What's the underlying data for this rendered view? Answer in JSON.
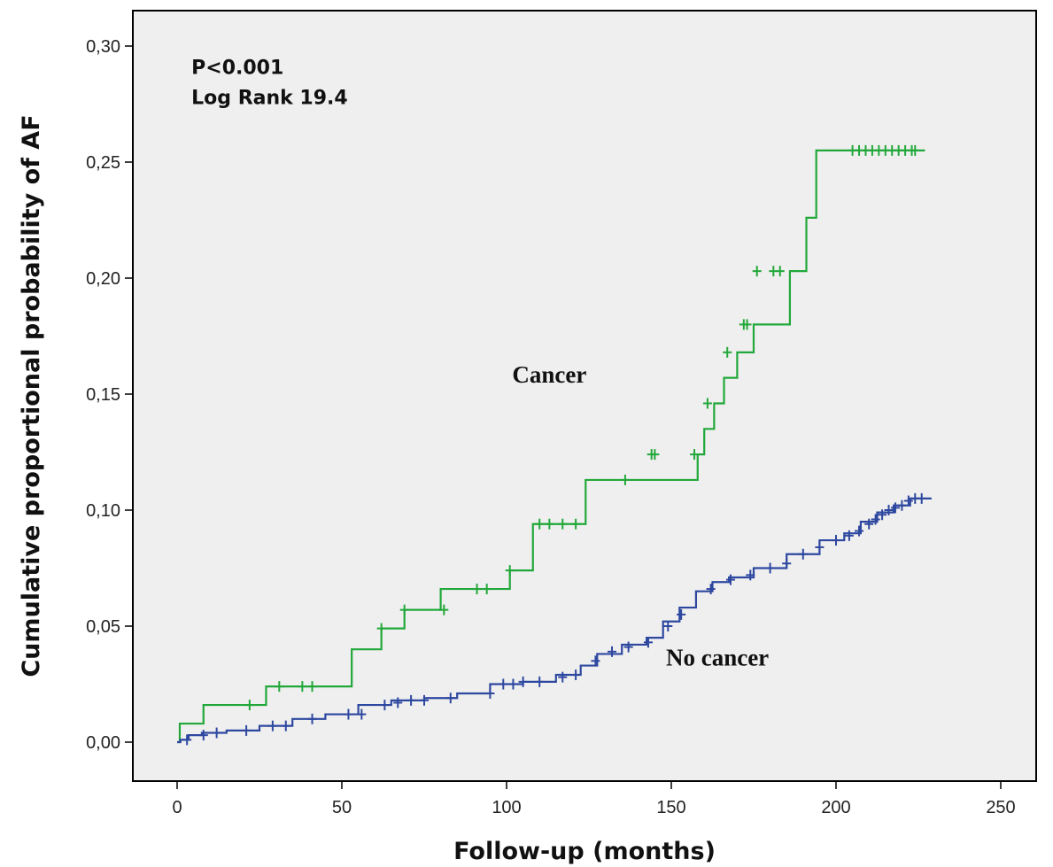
{
  "chart_data": {
    "type": "line",
    "step": true,
    "title": "",
    "xlabel": "Follow-up (months)",
    "ylabel": "Cumulative proportional probability of AF",
    "xlim": [
      0,
      250
    ],
    "ylim": [
      0,
      0.3
    ],
    "xticks": [
      0,
      50,
      100,
      150,
      200,
      250
    ],
    "xtick_labels": [
      "0",
      "50",
      "100",
      "150",
      "200",
      "250"
    ],
    "yticks": [
      0,
      0.05,
      0.1,
      0.15,
      0.2,
      0.25,
      0.3
    ],
    "ytick_labels": [
      "0,00",
      "0,05",
      "0,10",
      "0,15",
      "0,20",
      "0,25",
      "0,30"
    ],
    "grid": false,
    "background_color": "#efefef",
    "annotations": [
      {
        "text": "P<0.001",
        "x": 3,
        "y": 0.288
      },
      {
        "text": "Log Rank 19.4",
        "x": 3,
        "y": 0.275
      }
    ],
    "series": [
      {
        "name": "Cancer",
        "label_x": 113,
        "label_y": 0.155,
        "color": "#22a83a",
        "x": [
          0,
          0.8,
          0.8,
          8,
          8,
          27,
          27,
          53,
          53,
          62,
          62,
          69,
          69,
          80,
          80,
          101,
          101,
          108,
          108,
          124,
          124,
          158,
          158,
          160,
          160,
          163,
          163,
          166,
          166,
          170,
          170,
          175,
          175,
          186,
          186,
          191,
          191,
          194,
          194,
          227
        ],
        "y": [
          0,
          0,
          0.008,
          0.008,
          0.016,
          0.016,
          0.024,
          0.024,
          0.04,
          0.04,
          0.049,
          0.049,
          0.057,
          0.057,
          0.066,
          0.066,
          0.074,
          0.074,
          0.094,
          0.094,
          0.113,
          0.113,
          0.124,
          0.124,
          0.135,
          0.135,
          0.146,
          0.146,
          0.157,
          0.157,
          0.168,
          0.168,
          0.18,
          0.18,
          0.203,
          0.203,
          0.226,
          0.226,
          0.255,
          0.255
        ],
        "censored": [
          [
            22,
            0.016
          ],
          [
            31,
            0.024
          ],
          [
            38,
            0.024
          ],
          [
            41,
            0.024
          ],
          [
            62,
            0.049
          ],
          [
            69,
            0.057
          ],
          [
            81,
            0.057
          ],
          [
            91,
            0.066
          ],
          [
            94,
            0.066
          ],
          [
            101,
            0.074
          ],
          [
            110,
            0.094
          ],
          [
            113,
            0.094
          ],
          [
            117,
            0.094
          ],
          [
            121,
            0.094
          ],
          [
            136,
            0.113
          ],
          [
            144,
            0.124
          ],
          [
            145,
            0.124
          ],
          [
            157,
            0.124
          ],
          [
            161,
            0.146
          ],
          [
            167,
            0.168
          ],
          [
            172,
            0.18
          ],
          [
            173,
            0.18
          ],
          [
            176,
            0.203
          ],
          [
            181,
            0.203
          ],
          [
            183,
            0.203
          ],
          [
            205,
            0.255
          ],
          [
            207,
            0.255
          ],
          [
            209,
            0.255
          ],
          [
            211,
            0.255
          ],
          [
            213,
            0.255
          ],
          [
            215,
            0.255
          ],
          [
            217,
            0.255
          ],
          [
            219,
            0.255
          ],
          [
            221,
            0.255
          ],
          [
            223,
            0.255
          ],
          [
            224,
            0.255
          ]
        ]
      },
      {
        "name": "No cancer",
        "label_x": 164,
        "label_y": 0.033,
        "color": "#2e48a0",
        "x": [
          0,
          2,
          5,
          10,
          20,
          30,
          40,
          50,
          60,
          70,
          80,
          90,
          100,
          110,
          120,
          125,
          130,
          140,
          145,
          150,
          155,
          160,
          165,
          170,
          180,
          190,
          200,
          205,
          210,
          215,
          220,
          225,
          229
        ],
        "y": [
          0,
          0.001,
          0.003,
          0.004,
          0.005,
          0.007,
          0.01,
          0.012,
          0.016,
          0.018,
          0.019,
          0.021,
          0.025,
          0.026,
          0.029,
          0.033,
          0.038,
          0.042,
          0.045,
          0.052,
          0.058,
          0.065,
          0.069,
          0.071,
          0.075,
          0.081,
          0.087,
          0.09,
          0.095,
          0.099,
          0.102,
          0.105,
          0.105
        ],
        "censored": [
          [
            3,
            0.001
          ],
          [
            8,
            0.003
          ],
          [
            12,
            0.004
          ],
          [
            21,
            0.005
          ],
          [
            29,
            0.007
          ],
          [
            33,
            0.007
          ],
          [
            41,
            0.01
          ],
          [
            52,
            0.012
          ],
          [
            56,
            0.012
          ],
          [
            63,
            0.016
          ],
          [
            67,
            0.017
          ],
          [
            71,
            0.018
          ],
          [
            75,
            0.018
          ],
          [
            83,
            0.019
          ],
          [
            95,
            0.021
          ],
          [
            99,
            0.025
          ],
          [
            102,
            0.025
          ],
          [
            105,
            0.026
          ],
          [
            110,
            0.026
          ],
          [
            117,
            0.028
          ],
          [
            121,
            0.029
          ],
          [
            127,
            0.035
          ],
          [
            132,
            0.039
          ],
          [
            137,
            0.041
          ],
          [
            143,
            0.043
          ],
          [
            149,
            0.05
          ],
          [
            153,
            0.055
          ],
          [
            162,
            0.066
          ],
          [
            168,
            0.07
          ],
          [
            174,
            0.072
          ],
          [
            180,
            0.075
          ],
          [
            185,
            0.077
          ],
          [
            190,
            0.081
          ],
          [
            195,
            0.084
          ],
          [
            200,
            0.087
          ],
          [
            204,
            0.089
          ],
          [
            207,
            0.091
          ],
          [
            210,
            0.094
          ],
          [
            212,
            0.096
          ],
          [
            214,
            0.098
          ],
          [
            216,
            0.1
          ],
          [
            218,
            0.101
          ],
          [
            220,
            0.102
          ],
          [
            222,
            0.104
          ],
          [
            224,
            0.105
          ],
          [
            226,
            0.105
          ]
        ]
      }
    ]
  }
}
